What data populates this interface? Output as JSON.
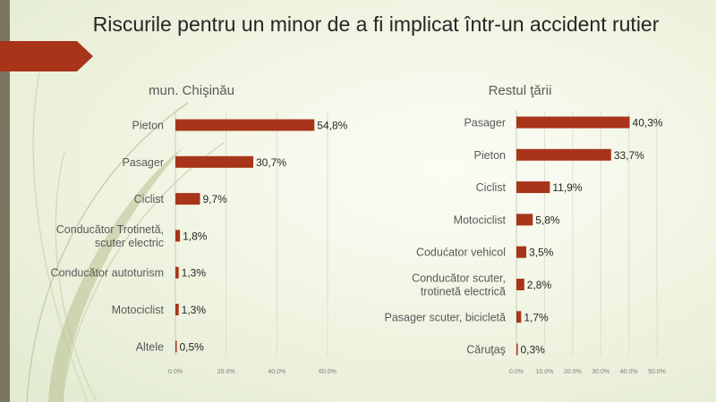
{
  "slide": {
    "title": "Riscurile pentru un minor de a fi implicat într-un accident rutier",
    "accent_color": "#a8341a",
    "band_color": "#7c7661"
  },
  "chart_data": [
    {
      "type": "bar",
      "orientation": "horizontal",
      "title": "mun. Chişinău",
      "categories": [
        "Pieton",
        "Pasager",
        "Ciclist",
        "Conducător Trotinetă, scuter electric",
        "Conducător autoturism",
        "Motociclist",
        "Altele"
      ],
      "category_lines": [
        [
          "Pieton"
        ],
        [
          "Pasager"
        ],
        [
          "Ciclist"
        ],
        [
          "Conducător Trotinetă,",
          "scuter electric"
        ],
        [
          "Conducător autoturism"
        ],
        [
          "Motociclist"
        ],
        [
          "Altele"
        ]
      ],
      "values": [
        54.8,
        30.7,
        9.7,
        1.8,
        1.3,
        1.3,
        0.5
      ],
      "data_labels": [
        "54,8%",
        "30,7%",
        "9,7%",
        "1,8%",
        "1,3%",
        "1,3%",
        "0,5%"
      ],
      "x_ticks": [
        0,
        20,
        40,
        60
      ],
      "x_tick_labels": [
        "0.0%",
        "20.0%",
        "40.0%",
        "60.0%"
      ],
      "xlim": [
        0,
        60
      ],
      "grid": true,
      "color": "#a8341a"
    },
    {
      "type": "bar",
      "orientation": "horizontal",
      "title": "Restul ţării",
      "categories": [
        "Pasager",
        "Pieton",
        "Ciclist",
        "Motociclist",
        "Codućator vehicol",
        "Conducător scuter, trotinetă electrică",
        "Pasager scuter, bicicletă",
        "Căruţaş"
      ],
      "category_lines": [
        [
          "Pasager"
        ],
        [
          "Pieton"
        ],
        [
          "Ciclist"
        ],
        [
          "Motociclist"
        ],
        [
          "Codućator vehicol"
        ],
        [
          "Conducător scuter,",
          "trotinetă electrică"
        ],
        [
          "Pasager scuter, bicicletă"
        ],
        [
          "Căruţaş"
        ]
      ],
      "values": [
        40.3,
        33.7,
        11.9,
        5.8,
        3.5,
        2.8,
        1.7,
        0.3
      ],
      "data_labels": [
        "40,3%",
        "33,7%",
        "11,9%",
        "5,8%",
        "3,5%",
        "2,8%",
        "1,7%",
        "0,3%"
      ],
      "x_ticks": [
        0,
        10,
        20,
        30,
        40,
        50
      ],
      "x_tick_labels": [
        "0.0%",
        "10.0%",
        "20.0%",
        "30.0%",
        "40.0%",
        "50.0%"
      ],
      "xlim": [
        0,
        50
      ],
      "grid": true,
      "color": "#a8341a"
    }
  ]
}
